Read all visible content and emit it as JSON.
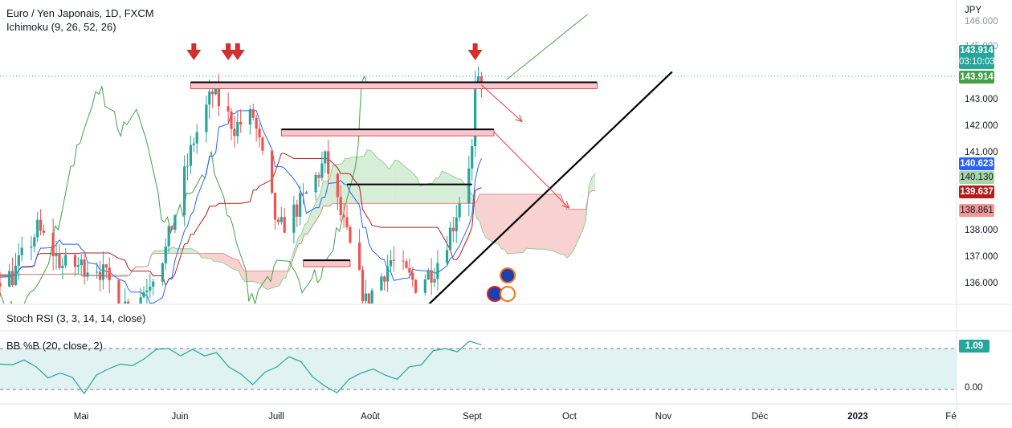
{
  "header": {
    "symbol_title": "Euro / Yen Japonais, 1D, FXCM",
    "indicator": "Ichimoku (9, 26, 52, 26)"
  },
  "price_axis": {
    "currency": "JPY",
    "ticks": [
      "146.000",
      "145.000",
      "143.000",
      "142.000",
      "141.000",
      "138.000",
      "137.000",
      "136.000"
    ],
    "last_price": "143.914",
    "countdown": "03:10:03",
    "last_close_badge": "143.914",
    "base_line_badge": "140.623",
    "span_a_badge": "140.130",
    "conversion_badge": "139.637",
    "span_b_badge": "138.861"
  },
  "time_axis": {
    "ticks": [
      "Mai",
      "Juin",
      "Juill",
      "Août",
      "Sept",
      "Oct",
      "Nov",
      "Déc",
      "2023",
      "Fé"
    ]
  },
  "lower_panes": {
    "stoch_rsi_label": "Stoch RSI (3, 3, 14, 14, close)",
    "bb_label": "BB %B (20, close, 2)",
    "bb_value": "1.09",
    "bb_ticks": [
      "0.00"
    ]
  },
  "colors": {
    "up": "#26a69a",
    "down": "#ef5350",
    "kijun": "#b71c1c",
    "tenkan": "#2962ff",
    "chikou": "#43a047",
    "cloud_bull": "#a5d6a7",
    "cloud_bear": "#ef9a9a",
    "zone_fill": "#f8c6cc",
    "bb_line": "#26a69a",
    "bb_fill": "#e0f2f1",
    "drawing": "#e53935",
    "trendline": "#000000"
  },
  "chart_data": {
    "type": "candlestick",
    "symbol": "EURJPY",
    "timeframe": "1D",
    "y_range": [
      135.5,
      146.5
    ],
    "x_range": [
      "2022-04-08",
      "2023-02-08"
    ],
    "ohlc_sampled": [
      {
        "date": "2022-04-12",
        "o": 135.8,
        "h": 136.9,
        "l": 135.7,
        "c": 136.6
      },
      {
        "date": "2022-04-20",
        "o": 136.6,
        "h": 138.6,
        "l": 136.0,
        "c": 138.4
      },
      {
        "date": "2022-04-28",
        "o": 138.0,
        "h": 138.4,
        "l": 135.9,
        "c": 137.0
      },
      {
        "date": "2022-05-09",
        "o": 137.4,
        "h": 138.3,
        "l": 136.2,
        "c": 137.0
      },
      {
        "date": "2022-05-20",
        "o": 136.8,
        "h": 137.1,
        "l": 134.6,
        "c": 135.2
      },
      {
        "date": "2022-05-31",
        "o": 136.0,
        "h": 138.0,
        "l": 135.5,
        "c": 137.6
      },
      {
        "date": "2022-06-09",
        "o": 139.5,
        "h": 142.3,
        "l": 139.2,
        "c": 141.8
      },
      {
        "date": "2022-06-15",
        "o": 142.0,
        "h": 143.9,
        "l": 141.3,
        "c": 143.6
      },
      {
        "date": "2022-06-22",
        "o": 142.2,
        "h": 143.9,
        "l": 141.5,
        "c": 142.3
      },
      {
        "date": "2022-06-28",
        "o": 143.4,
        "h": 143.9,
        "l": 142.4,
        "c": 142.7
      },
      {
        "date": "2022-07-06",
        "o": 141.5,
        "h": 141.9,
        "l": 137.7,
        "c": 138.3
      },
      {
        "date": "2022-07-14",
        "o": 138.8,
        "h": 140.2,
        "l": 137.2,
        "c": 139.5
      },
      {
        "date": "2022-07-21",
        "o": 140.1,
        "h": 142.3,
        "l": 139.6,
        "c": 141.0
      },
      {
        "date": "2022-07-28",
        "o": 139.0,
        "h": 140.6,
        "l": 137.3,
        "c": 138.1
      },
      {
        "date": "2022-08-03",
        "o": 136.9,
        "h": 137.3,
        "l": 135.3,
        "c": 135.6
      },
      {
        "date": "2022-08-11",
        "o": 136.8,
        "h": 138.0,
        "l": 136.0,
        "c": 137.2
      },
      {
        "date": "2022-08-19",
        "o": 137.3,
        "h": 137.9,
        "l": 136.0,
        "c": 136.3
      },
      {
        "date": "2022-08-25",
        "o": 136.0,
        "h": 137.3,
        "l": 135.9,
        "c": 136.9
      },
      {
        "date": "2022-08-31",
        "o": 138.6,
        "h": 139.2,
        "l": 138.1,
        "c": 138.6
      },
      {
        "date": "2022-09-06",
        "o": 139.2,
        "h": 141.6,
        "l": 139.0,
        "c": 141.4
      },
      {
        "date": "2022-09-07",
        "o": 141.3,
        "h": 144.0,
        "l": 141.2,
        "c": 143.7
      },
      {
        "date": "2022-09-09",
        "o": 143.9,
        "h": 144.0,
        "l": 143.1,
        "c": 143.9
      }
    ],
    "zones": [
      {
        "from": "2022-06-08",
        "to": "2022-10-16",
        "low": 143.9,
        "high": 144.0
      },
      {
        "from": "2022-07-07",
        "to": "2022-09-13",
        "low": 142.0,
        "high": 142.2
      },
      {
        "from": "2022-07-14",
        "to": "2022-07-29",
        "low": 137.1,
        "high": 137.2
      }
    ],
    "lower_pane": {
      "indicator": "BB %B (20, close, 2)",
      "last": 1.09,
      "bands": [
        0,
        1
      ],
      "values": [
        0.62,
        0.6,
        0.72,
        0.55,
        0.28,
        0.4,
        0.3,
        -0.1,
        0.35,
        0.5,
        0.62,
        0.58,
        0.75,
        0.98,
        1.0,
        0.82,
        0.98,
        0.82,
        0.9,
        0.55,
        0.38,
        0.12,
        0.42,
        0.55,
        0.8,
        0.68,
        0.3,
        0.08,
        -0.08,
        0.25,
        0.4,
        0.5,
        0.35,
        0.25,
        0.55,
        0.6,
        0.95,
        1.0,
        0.92,
        1.18,
        1.09
      ]
    }
  }
}
